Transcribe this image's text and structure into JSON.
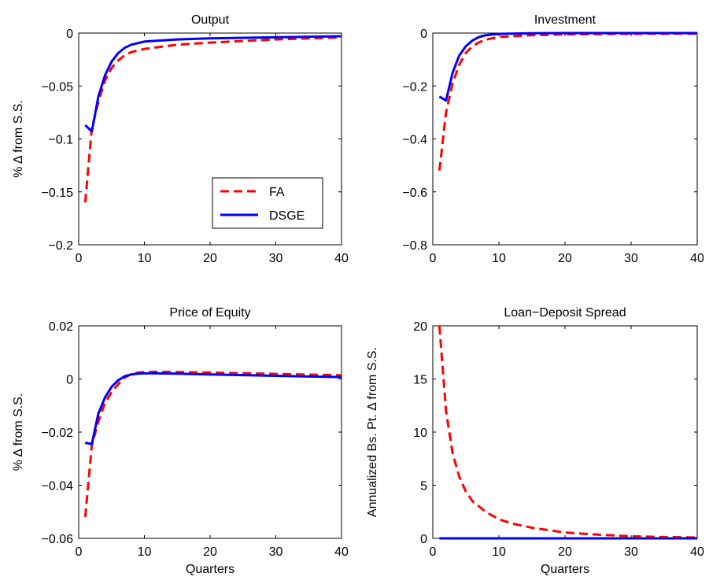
{
  "chart_data": [
    {
      "type": "line",
      "title": "Output",
      "xlabel": "",
      "ylabel": "% Δ from S.S.",
      "xlim": [
        0,
        40
      ],
      "ylim": [
        -0.2,
        0
      ],
      "xticks": [
        0,
        10,
        20,
        30,
        40
      ],
      "yticks": [
        -0.2,
        -0.15,
        -0.1,
        -0.05,
        0
      ],
      "xtick_labels": [
        "0",
        "10",
        "20",
        "30",
        "40"
      ],
      "ytick_labels": [
        "−0.2",
        "−0.15",
        "−0.1",
        "−0.05",
        "0"
      ],
      "legend": {
        "position": "bottom-right",
        "entries": [
          "FA",
          "DSGE"
        ]
      },
      "series": [
        {
          "name": "FA",
          "color": "#ff0000",
          "dash": "dashed",
          "x": [
            1,
            2,
            3,
            4,
            5,
            6,
            7,
            8,
            10,
            15,
            20,
            30,
            40
          ],
          "y": [
            -0.16,
            -0.09,
            -0.065,
            -0.045,
            -0.033,
            -0.026,
            -0.021,
            -0.018,
            -0.015,
            -0.011,
            -0.009,
            -0.006,
            -0.004
          ]
        },
        {
          "name": "DSGE",
          "color": "#0000ff",
          "dash": "solid",
          "x": [
            1,
            2,
            3,
            4,
            5,
            6,
            7,
            8,
            10,
            15,
            20,
            30,
            40
          ],
          "y": [
            -0.087,
            -0.093,
            -0.06,
            -0.04,
            -0.027,
            -0.019,
            -0.014,
            -0.011,
            -0.008,
            -0.006,
            -0.005,
            -0.004,
            -0.003
          ]
        }
      ]
    },
    {
      "type": "line",
      "title": "Investment",
      "xlabel": "",
      "ylabel": "",
      "xlim": [
        0,
        40
      ],
      "ylim": [
        -0.8,
        0
      ],
      "xticks": [
        0,
        10,
        20,
        30,
        40
      ],
      "yticks": [
        -0.8,
        -0.6,
        -0.4,
        -0.2,
        0
      ],
      "xtick_labels": [
        "0",
        "10",
        "20",
        "30",
        "40"
      ],
      "ytick_labels": [
        "−0.8",
        "−0.6",
        "−0.4",
        "−0.2",
        "0"
      ],
      "series": [
        {
          "name": "FA",
          "color": "#ff0000",
          "dash": "dashed",
          "x": [
            1,
            2,
            3,
            4,
            5,
            6,
            7,
            8,
            10,
            15,
            20,
            30,
            40
          ],
          "y": [
            -0.52,
            -0.3,
            -0.19,
            -0.12,
            -0.075,
            -0.05,
            -0.035,
            -0.025,
            -0.015,
            -0.008,
            -0.005,
            -0.003,
            -0.002
          ]
        },
        {
          "name": "DSGE",
          "color": "#0000ff",
          "dash": "solid",
          "x": [
            1,
            2,
            3,
            4,
            5,
            6,
            7,
            8,
            10,
            15,
            20,
            30,
            40
          ],
          "y": [
            -0.24,
            -0.255,
            -0.15,
            -0.085,
            -0.05,
            -0.028,
            -0.015,
            -0.008,
            -0.003,
            -0.001,
            0,
            0,
            0
          ]
        }
      ]
    },
    {
      "type": "line",
      "title": "Price of Equity",
      "xlabel": "Quarters",
      "ylabel": "% Δ from S.S.",
      "xlim": [
        0,
        40
      ],
      "ylim": [
        -0.06,
        0.02
      ],
      "xticks": [
        0,
        10,
        20,
        30,
        40
      ],
      "yticks": [
        -0.06,
        -0.04,
        -0.02,
        0,
        0.02
      ],
      "xtick_labels": [
        "0",
        "10",
        "20",
        "30",
        "40"
      ],
      "ytick_labels": [
        "−0.06",
        "−0.04",
        "−0.02",
        "0",
        "0.02"
      ],
      "series": [
        {
          "name": "FA",
          "color": "#ff0000",
          "dash": "dashed",
          "x": [
            1,
            2,
            3,
            4,
            5,
            6,
            7,
            8,
            9,
            10,
            12,
            15,
            20,
            30,
            40
          ],
          "y": [
            -0.052,
            -0.025,
            -0.016,
            -0.009,
            -0.005,
            -0.002,
            0.0005,
            0.0018,
            0.0024,
            0.0026,
            0.0027,
            0.0026,
            0.0024,
            0.0019,
            0.0014
          ]
        },
        {
          "name": "DSGE",
          "color": "#0000ff",
          "dash": "solid",
          "x": [
            1,
            2,
            3,
            4,
            5,
            6,
            7,
            8,
            9,
            10,
            12,
            15,
            20,
            30,
            40
          ],
          "y": [
            -0.024,
            -0.0245,
            -0.013,
            -0.007,
            -0.003,
            -0.0005,
            0.001,
            0.0017,
            0.002,
            0.0021,
            0.0021,
            0.002,
            0.0017,
            0.0012,
            0.0007
          ]
        }
      ]
    },
    {
      "type": "line",
      "title": "Loan−Deposit Spread",
      "xlabel": "Quarters",
      "ylabel": "Annualized Bs. Pt. Δ from S.S.",
      "xlim": [
        0,
        40
      ],
      "ylim": [
        0,
        20
      ],
      "xticks": [
        0,
        10,
        20,
        30,
        40
      ],
      "yticks": [
        0,
        5,
        10,
        15,
        20
      ],
      "xtick_labels": [
        "0",
        "10",
        "20",
        "30",
        "40"
      ],
      "ytick_labels": [
        "0",
        "5",
        "10",
        "15",
        "20"
      ],
      "series": [
        {
          "name": "FA",
          "color": "#ff0000",
          "dash": "dashed",
          "x": [
            1,
            2,
            3,
            4,
            5,
            6,
            7,
            8,
            10,
            12,
            15,
            20,
            25,
            30,
            35,
            40
          ],
          "y": [
            20,
            12,
            8,
            5.8,
            4.4,
            3.5,
            3.0,
            2.5,
            1.8,
            1.4,
            1.0,
            0.55,
            0.35,
            0.2,
            0.12,
            0.08
          ]
        },
        {
          "name": "DSGE",
          "color": "#0000ff",
          "dash": "solid",
          "x": [
            1,
            40
          ],
          "y": [
            0,
            0
          ]
        }
      ]
    }
  ]
}
